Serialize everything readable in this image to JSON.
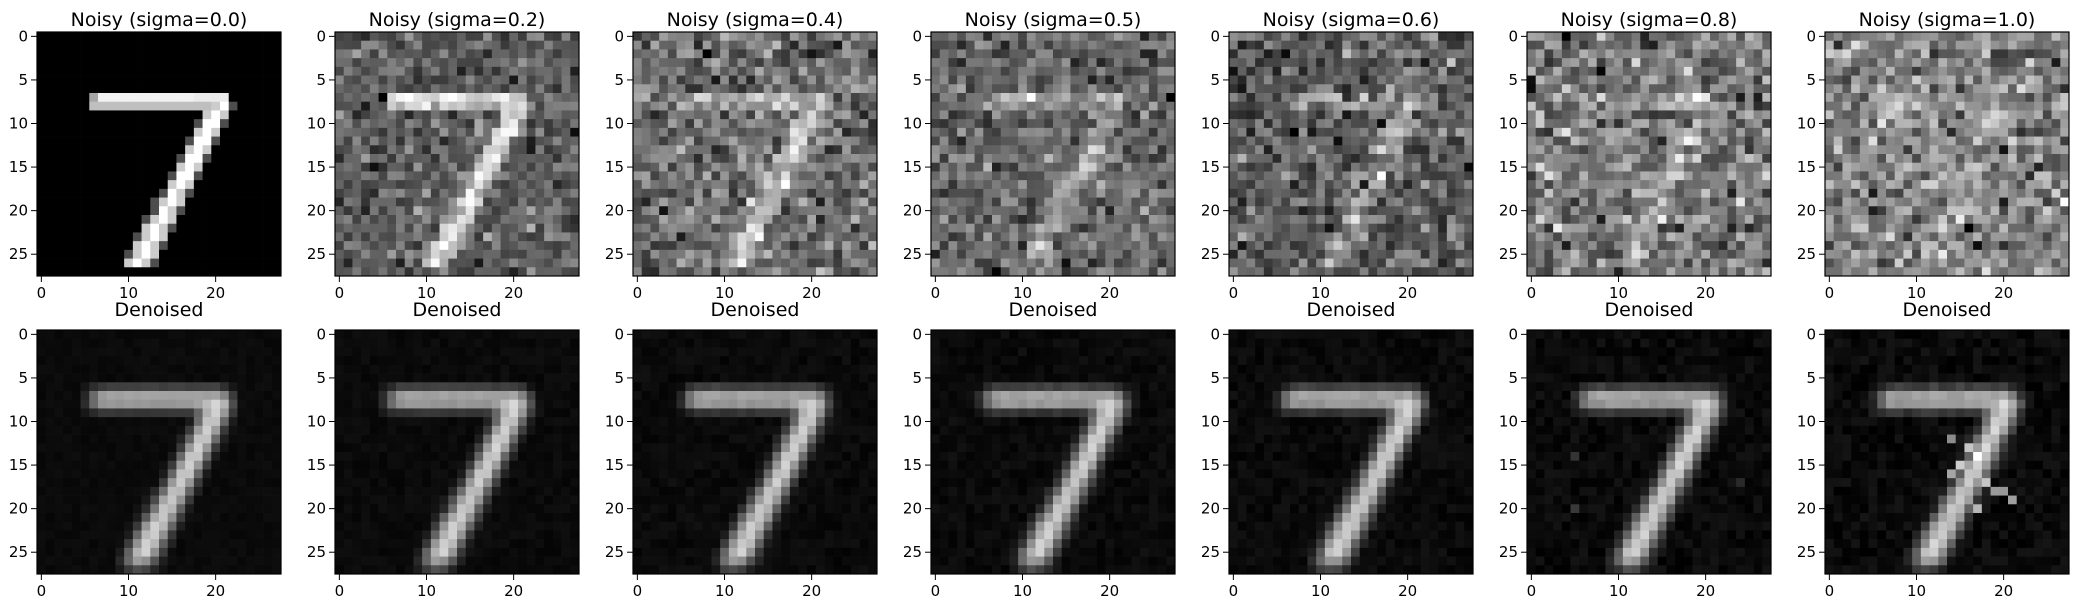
{
  "figure": {
    "rows": [
      {
        "panels": [
          {
            "title": "Noisy (sigma=0.0)",
            "sigma": 0.0,
            "kind": "noisy"
          },
          {
            "title": "Noisy (sigma=0.2)",
            "sigma": 0.2,
            "kind": "noisy"
          },
          {
            "title": "Noisy (sigma=0.4)",
            "sigma": 0.4,
            "kind": "noisy"
          },
          {
            "title": "Noisy (sigma=0.5)",
            "sigma": 0.5,
            "kind": "noisy"
          },
          {
            "title": "Noisy (sigma=0.6)",
            "sigma": 0.6,
            "kind": "noisy"
          },
          {
            "title": "Noisy (sigma=0.8)",
            "sigma": 0.8,
            "kind": "noisy"
          },
          {
            "title": "Noisy (sigma=1.0)",
            "sigma": 1.0,
            "kind": "noisy"
          }
        ]
      },
      {
        "panels": [
          {
            "title": "Denoised",
            "sigma": 0.0,
            "kind": "denoised"
          },
          {
            "title": "Denoised",
            "sigma": 0.2,
            "kind": "denoised"
          },
          {
            "title": "Denoised",
            "sigma": 0.4,
            "kind": "denoised"
          },
          {
            "title": "Denoised",
            "sigma": 0.5,
            "kind": "denoised"
          },
          {
            "title": "Denoised",
            "sigma": 0.6,
            "kind": "denoised"
          },
          {
            "title": "Denoised",
            "sigma": 0.8,
            "kind": "denoised"
          },
          {
            "title": "Denoised",
            "sigma": 1.0,
            "kind": "denoised"
          }
        ]
      }
    ],
    "image_size": 28,
    "colormap": "gray",
    "x_ticks": [
      0,
      10,
      20
    ],
    "y_ticks": [
      0,
      5,
      10,
      15,
      20,
      25
    ],
    "x_tick_labels": [
      "0",
      "10",
      "20"
    ],
    "y_tick_labels": [
      "0",
      "5",
      "10",
      "15",
      "20",
      "25"
    ],
    "digit": "7"
  }
}
